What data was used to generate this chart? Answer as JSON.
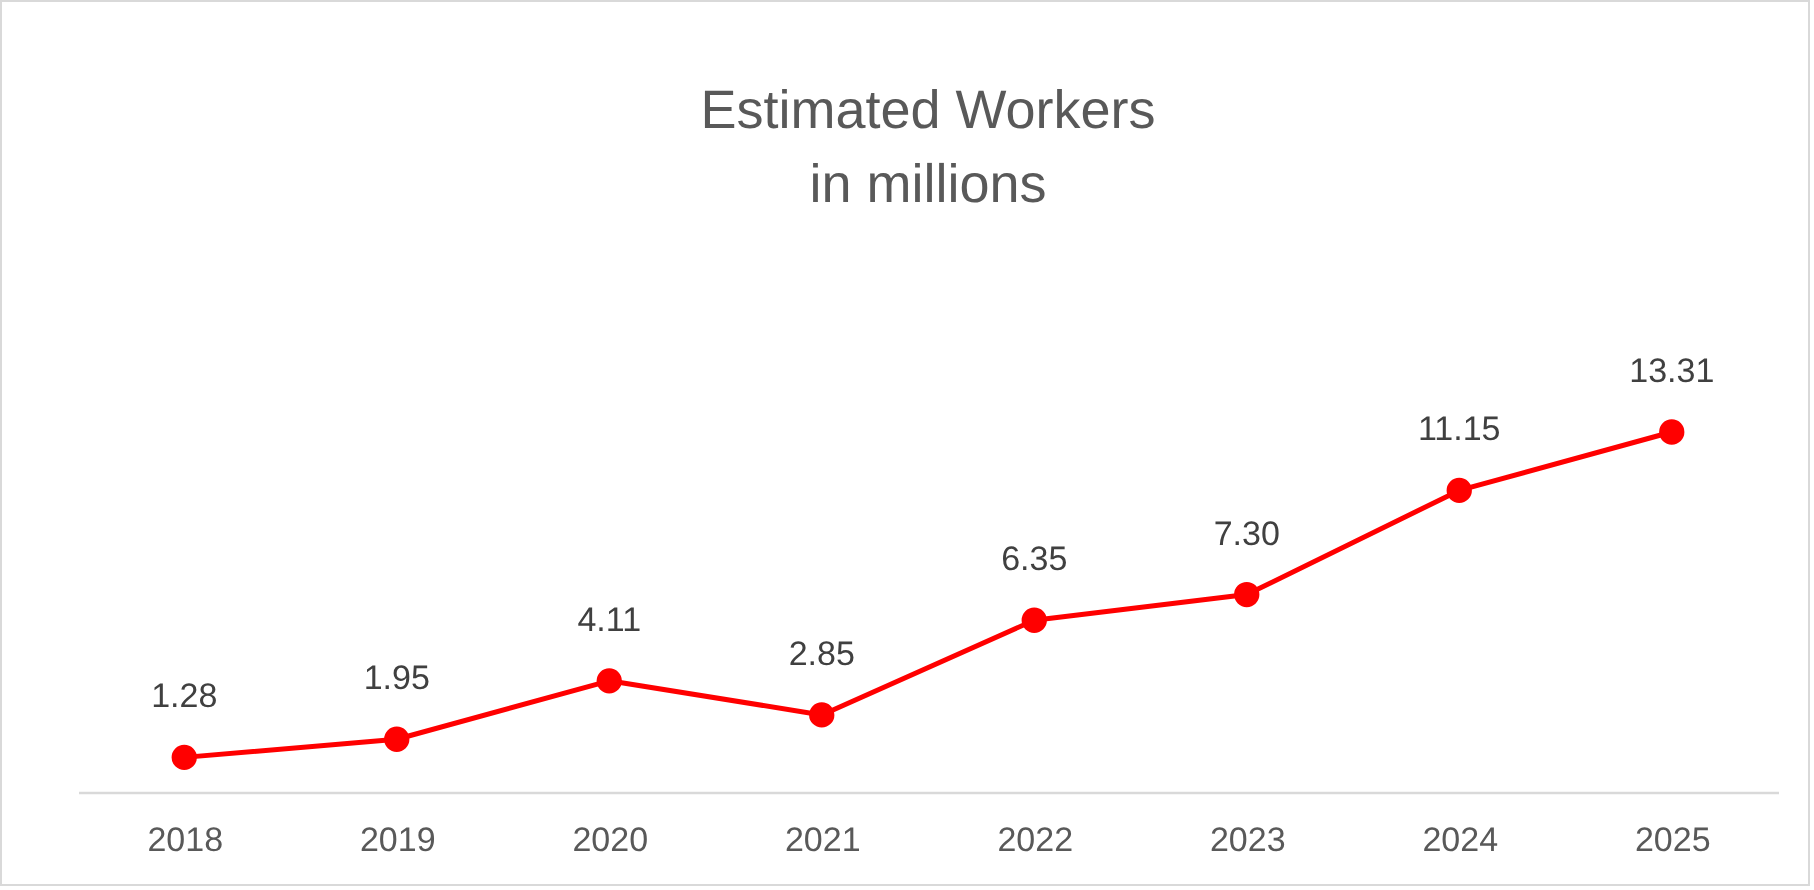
{
  "chart_data": {
    "type": "line",
    "title": "Estimated Workers",
    "subtitle": "in millions",
    "categories": [
      "2018",
      "2019",
      "2020",
      "2021",
      "2022",
      "2023",
      "2024",
      "2025"
    ],
    "series": [
      {
        "color": "#ff0000",
        "values": [
          1.28,
          1.95,
          4.11,
          2.85,
          6.35,
          7.3,
          11.15,
          13.31
        ],
        "value_labels": [
          "1.28",
          "1.95",
          "4.11",
          "2.85",
          "6.35",
          "7.30",
          "11.15",
          "13.31"
        ]
      }
    ],
    "marker": "circle",
    "line_style": "solid",
    "grid": false
  }
}
